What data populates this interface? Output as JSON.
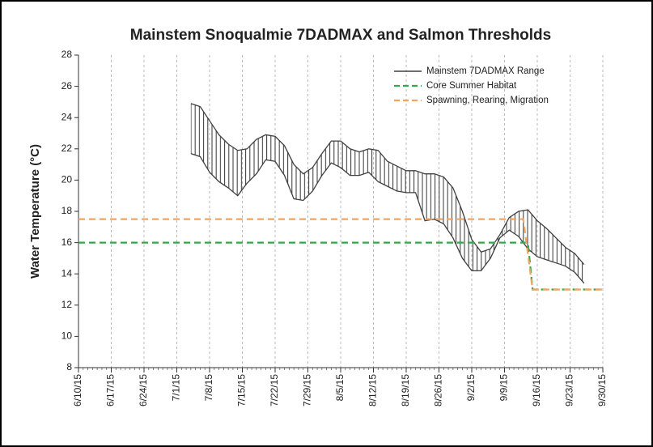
{
  "chart_data": {
    "type": "line",
    "title": "Mainstem Snoqualmie 7DADMAX and Salmon Thresholds",
    "y_label": "Water Temperature (°C)",
    "xlim": [
      "6/10/15",
      "9/30/15"
    ],
    "xticks": [
      "6/10/15",
      "6/17/15",
      "6/24/15",
      "7/1/15",
      "7/8/15",
      "7/15/15",
      "7/22/15",
      "7/29/15",
      "8/5/15",
      "8/12/15",
      "8/19/15",
      "8/26/15",
      "9/2/15",
      "9/9/15",
      "9/16/15",
      "9/23/15",
      "9/30/15"
    ],
    "ylim": [
      8,
      28
    ],
    "yticks": [
      8,
      10,
      12,
      14,
      16,
      18,
      20,
      22,
      24,
      26,
      28
    ],
    "grid": "x",
    "legend": "top-right",
    "series": [
      {
        "name": "Mainstem 7DADMAX Range",
        "color": "#404040",
        "x": [
          "7/4/15",
          "7/6/15",
          "7/8/15",
          "7/10/15",
          "7/12/15",
          "7/14/15",
          "7/16/15",
          "7/18/15",
          "7/20/15",
          "7/22/15",
          "7/24/15",
          "7/26/15",
          "7/28/15",
          "7/30/15",
          "8/1/15",
          "8/3/15",
          "8/5/15",
          "8/7/15",
          "8/9/15",
          "8/11/15",
          "8/13/15",
          "8/15/15",
          "8/17/15",
          "8/19/15",
          "8/21/15",
          "8/23/15",
          "8/25/15",
          "8/27/15",
          "8/29/15",
          "8/31/15",
          "9/2/15",
          "9/4/15",
          "9/6/15",
          "9/8/15",
          "9/10/15",
          "9/12/15",
          "9/14/15",
          "9/16/15",
          "9/18/15",
          "9/20/15",
          "9/22/15",
          "9/24/15",
          "9/26/15"
        ],
        "high": [
          24.9,
          24.7,
          23.8,
          22.9,
          22.3,
          21.9,
          22.0,
          22.6,
          22.9,
          22.8,
          22.2,
          21.0,
          20.4,
          20.8,
          21.7,
          22.5,
          22.5,
          22.0,
          21.8,
          22.0,
          21.9,
          21.2,
          20.9,
          20.6,
          20.6,
          20.4,
          20.4,
          20.2,
          19.5,
          18.0,
          16.2,
          15.4,
          15.6,
          16.5,
          17.6,
          18.0,
          18.1,
          17.4,
          16.9,
          16.3,
          15.7,
          15.3,
          14.6
        ],
        "low": [
          21.7,
          21.5,
          20.5,
          19.9,
          19.5,
          19.0,
          19.8,
          20.4,
          21.3,
          21.2,
          20.3,
          18.8,
          18.7,
          19.3,
          20.3,
          21.1,
          20.8,
          20.3,
          20.3,
          20.5,
          19.9,
          19.6,
          19.3,
          19.2,
          19.2,
          17.4,
          17.5,
          17.2,
          16.3,
          15.0,
          14.2,
          14.2,
          15.0,
          16.3,
          16.8,
          16.4,
          15.6,
          15.1,
          14.9,
          14.7,
          14.5,
          14.1,
          13.4
        ]
      },
      {
        "name": "Core Summer Habitat",
        "color": "#2eaa4a",
        "dash": true,
        "x": [
          "6/10/15",
          "9/14/15",
          "9/15/15",
          "9/30/15"
        ],
        "values": [
          16,
          16,
          13,
          13
        ]
      },
      {
        "name": "Spawning, Rearing, Migration",
        "color": "#f4a460",
        "dash": true,
        "x": [
          "6/10/15",
          "9/13/15",
          "9/15/15",
          "9/30/15"
        ],
        "values": [
          17.5,
          17.5,
          13,
          13
        ]
      }
    ]
  }
}
